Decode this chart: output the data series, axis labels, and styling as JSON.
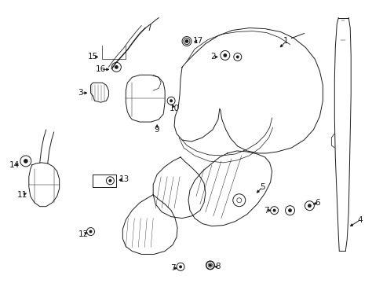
{
  "background_color": "#ffffff",
  "line_color": "#1a1a1a",
  "fig_width": 4.89,
  "fig_height": 3.6,
  "dpi": 100,
  "font_size": 7.5,
  "lw": 0.7
}
